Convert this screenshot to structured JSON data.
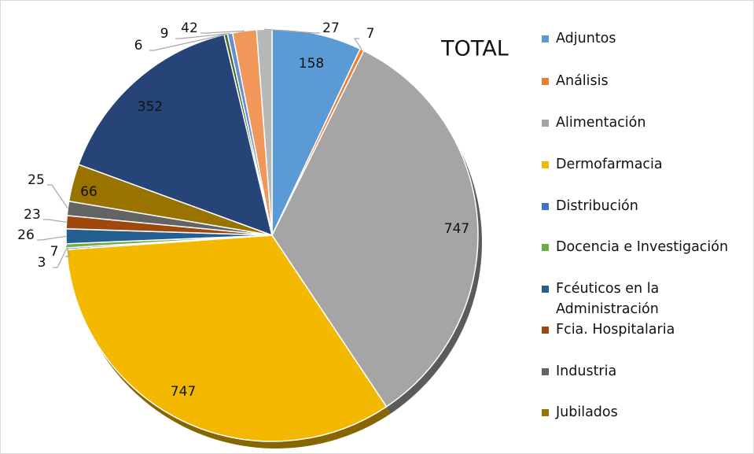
{
  "chart_data": {
    "type": "pie",
    "title": "TOTAL",
    "categories": [
      "Adjuntos",
      "Análisis",
      "Alimentación",
      "Dermofarmacia",
      "Distribución",
      "Docencia e Investigación",
      "Fcéuticos en la Administración",
      "Fcia. Hospitalaria",
      "Industria",
      "Jubilados",
      null,
      null,
      null,
      null,
      null
    ],
    "values": [
      158,
      7,
      747,
      747,
      3,
      7,
      26,
      23,
      25,
      66,
      352,
      6,
      9,
      42,
      27
    ],
    "colors": [
      "#5b9bd5",
      "#ed7d31",
      "#a5a5a5",
      "#f5b800",
      "#4472c4",
      "#70ad47",
      "#255e91",
      "#9e480e",
      "#636363",
      "#997300",
      "#264478",
      "#43682b",
      "#698ed0",
      "#f1975a",
      "#b7b7b7"
    ]
  }
}
